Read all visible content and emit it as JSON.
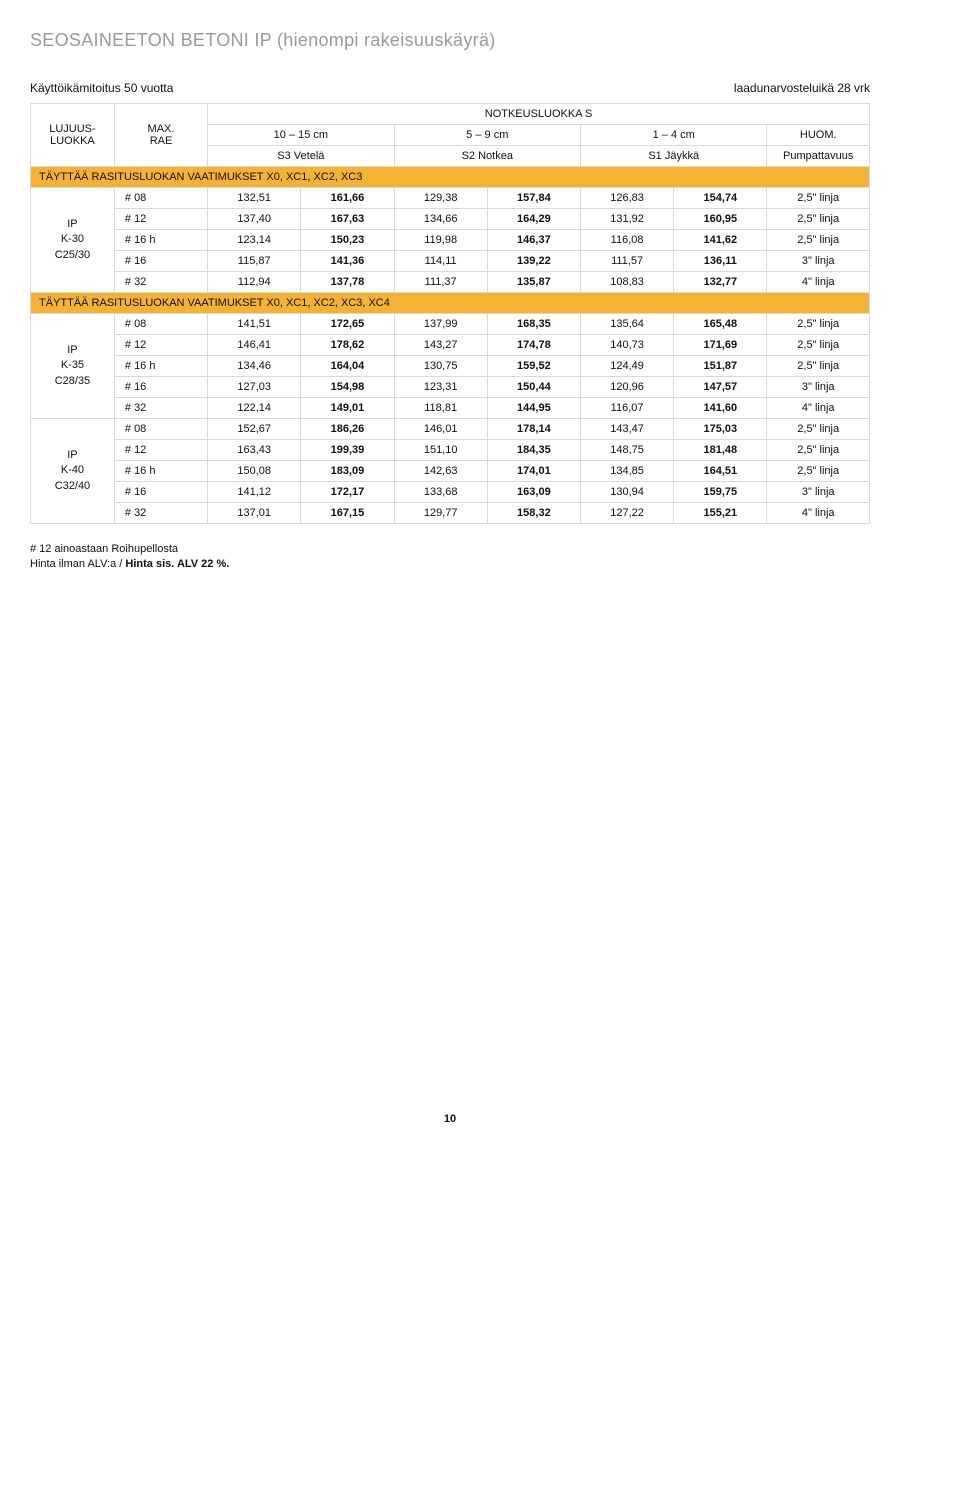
{
  "page_title": "SEOSAINEETON BETONI IP (hienompi rakeisuuskäyrä)",
  "top_left": "Käyttöikämitoitus 50 vuotta",
  "top_right": "laadunarvosteluikä 28 vrk",
  "header": {
    "col_group": "LUJUUS-\nLUOKKA",
    "col_rae": "MAX.\nRAE",
    "col_super": "NOTKEUSLUOKKA S",
    "col_r1": [
      "10 – 15 cm",
      "5 – 9 cm",
      "1 – 4 cm",
      "HUOM."
    ],
    "col_r2": [
      "S3 Vetelä",
      "S2 Notkea",
      "S1 Jäykkä",
      "Pumpattavuus"
    ]
  },
  "bands": {
    "b1": "TÄYTTÄÄ RASITUSLUOKAN VAATIMUKSET X0, XC1, XC2, XC3",
    "b2": "TÄYTTÄÄ RASITUSLUOKAN VAATIMUKSET X0, XC1, XC2, XC3, XC4"
  },
  "groups": [
    {
      "id": "g1",
      "band": "b1",
      "label_lines": [
        "IP",
        "K-30",
        "C25/30"
      ],
      "rows": [
        {
          "rae": "# 08",
          "v": [
            "132,51",
            "161,66",
            "129,38",
            "157,84",
            "126,83",
            "154,74"
          ],
          "huom": "2,5\" linja"
        },
        {
          "rae": "# 12",
          "v": [
            "137,40",
            "167,63",
            "134,66",
            "164,29",
            "131,92",
            "160,95"
          ],
          "huom": "2,5\" linja"
        },
        {
          "rae": "# 16 h",
          "v": [
            "123,14",
            "150,23",
            "119,98",
            "146,37",
            "116,08",
            "141,62"
          ],
          "huom": "2,5\" linja"
        },
        {
          "rae": "# 16",
          "v": [
            "115,87",
            "141,36",
            "114,11",
            "139,22",
            "111,57",
            "136,11"
          ],
          "huom": "3\" linja"
        },
        {
          "rae": "# 32",
          "v": [
            "112,94",
            "137,78",
            "111,37",
            "135,87",
            "108,83",
            "132,77"
          ],
          "huom": "4\" linja"
        }
      ]
    },
    {
      "id": "g2",
      "band": "b2",
      "label_lines": [
        "IP",
        "K-35",
        "C28/35"
      ],
      "rows": [
        {
          "rae": "# 08",
          "v": [
            "141,51",
            "172,65",
            "137,99",
            "168,35",
            "135,64",
            "165,48"
          ],
          "huom": "2,5\" linja"
        },
        {
          "rae": "# 12",
          "v": [
            "146,41",
            "178,62",
            "143,27",
            "174,78",
            "140,73",
            "171,69"
          ],
          "huom": "2,5\" linja"
        },
        {
          "rae": "# 16 h",
          "v": [
            "134,46",
            "164,04",
            "130,75",
            "159,52",
            "124,49",
            "151,87"
          ],
          "huom": "2,5\" linja"
        },
        {
          "rae": "# 16",
          "v": [
            "127,03",
            "154,98",
            "123,31",
            "150,44",
            "120,96",
            "147,57"
          ],
          "huom": "3\" linja"
        },
        {
          "rae": "# 32",
          "v": [
            "122,14",
            "149,01",
            "118,81",
            "144,95",
            "116,07",
            "141,60"
          ],
          "huom": "4\" linja"
        }
      ]
    },
    {
      "id": "g3",
      "band": null,
      "label_lines": [
        "IP",
        "K-40",
        "C32/40"
      ],
      "rows": [
        {
          "rae": "# 08",
          "v": [
            "152,67",
            "186,26",
            "146,01",
            "178,14",
            "143,47",
            "175,03"
          ],
          "huom": "2,5\" linja"
        },
        {
          "rae": "# 12",
          "v": [
            "163,43",
            "199,39",
            "151,10",
            "184,35",
            "148,75",
            "181,48"
          ],
          "huom": "2,5\" linja"
        },
        {
          "rae": "# 16 h",
          "v": [
            "150,08",
            "183,09",
            "142,63",
            "174,01",
            "134,85",
            "164,51"
          ],
          "huom": "2,5\" linja"
        },
        {
          "rae": "# 16",
          "v": [
            "141,12",
            "172,17",
            "133,68",
            "163,09",
            "130,94",
            "159,75"
          ],
          "huom": "3\" linja"
        },
        {
          "rae": "# 32",
          "v": [
            "137,01",
            "167,15",
            "129,77",
            "158,32",
            "127,22",
            "155,21"
          ],
          "huom": "4\" linja"
        }
      ]
    }
  ],
  "footnote_line1": "# 12 ainoastaan Roihupellosta",
  "footnote_line2_a": "Hinta ilman ALV:a / ",
  "footnote_line2_b": "Hinta sis. ALV 22 %.",
  "page_number": "10"
}
